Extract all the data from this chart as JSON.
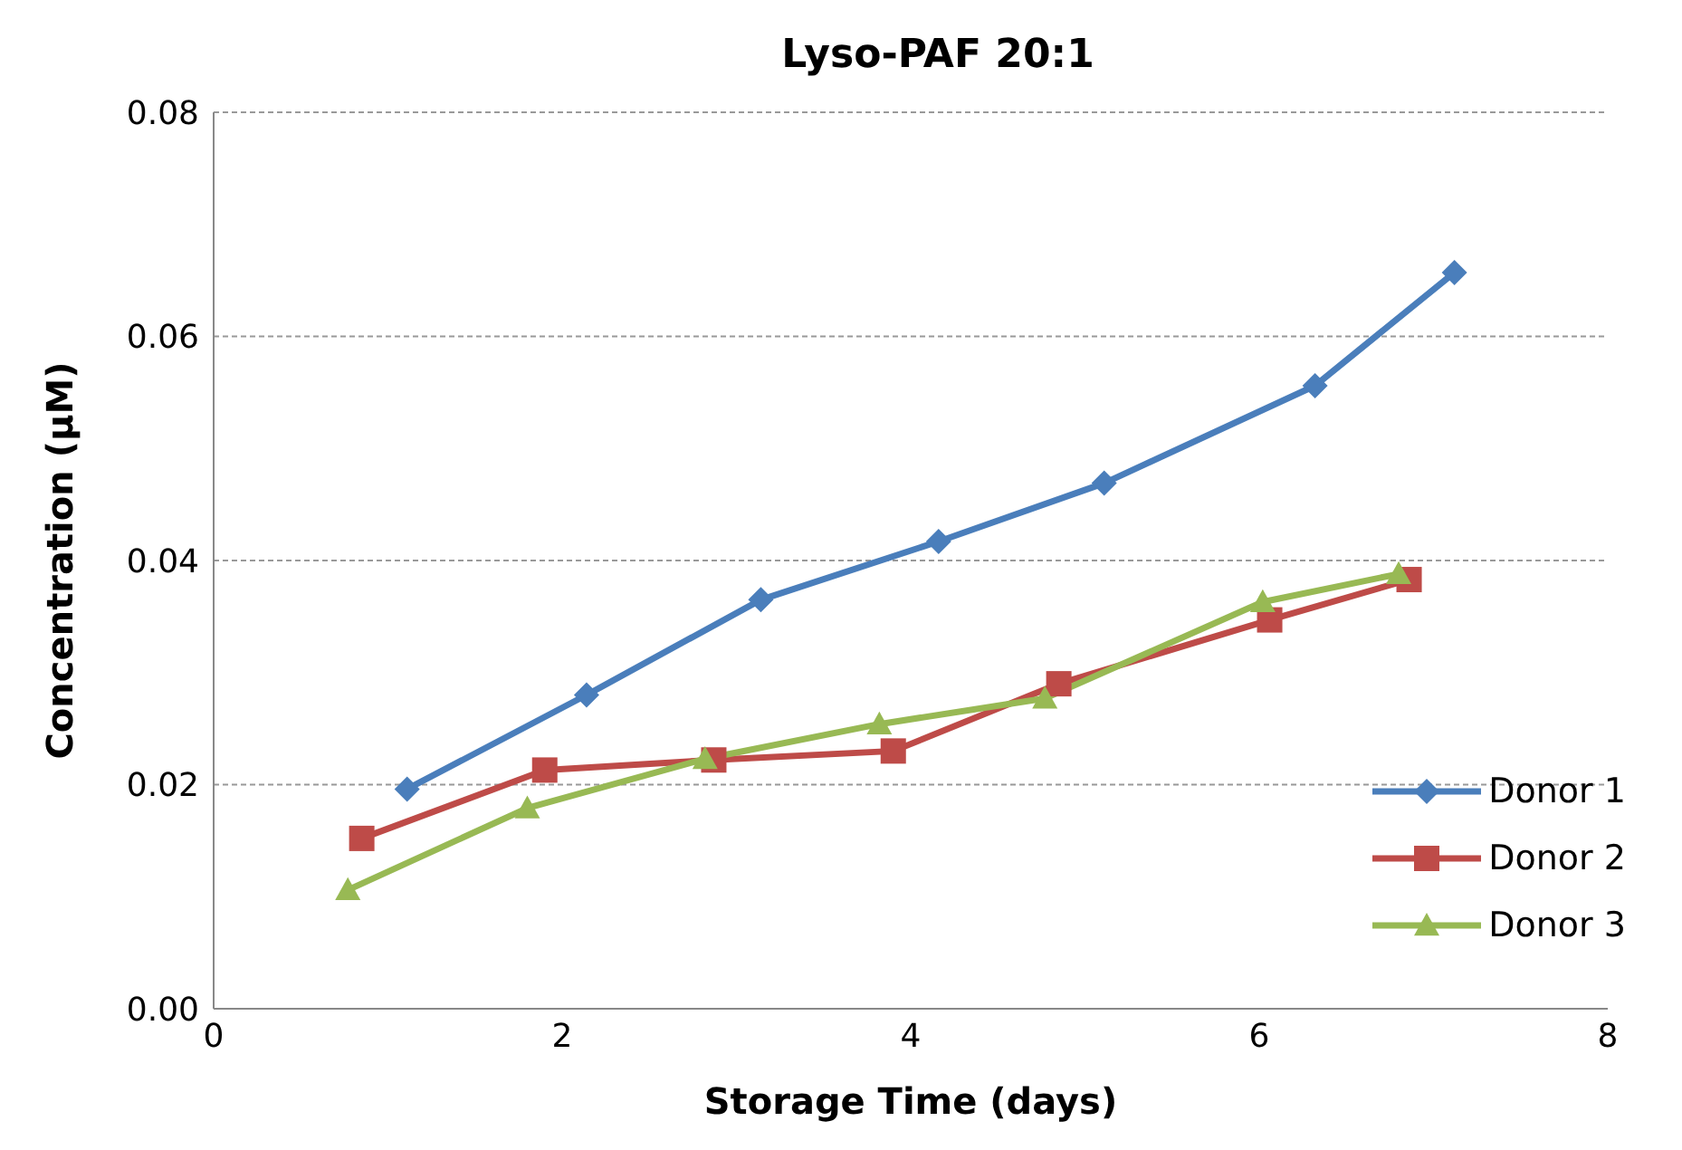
{
  "chart_data": {
    "type": "line",
    "title": "Lyso-PAF 20:1",
    "xlabel": "Storage Time (days)",
    "ylabel": "Concentration (μM)",
    "xlim": [
      0,
      8
    ],
    "xticks": [
      0,
      2,
      4,
      6,
      8
    ],
    "ylim": [
      0,
      0.08
    ],
    "yticks": [
      {
        "value": 0,
        "label": "0.00"
      },
      {
        "value": 0.02,
        "label": "0.02"
      },
      {
        "value": 0.04,
        "label": "0.04"
      },
      {
        "value": 0.06,
        "label": "0.06"
      },
      {
        "value": 0.08,
        "label": "0.08"
      }
    ],
    "grid": "y",
    "legend": "right",
    "line_style": "solid",
    "series": [
      {
        "name": "Donor 1",
        "color": "#4a7ebb",
        "marker": "diamond",
        "x": [
          1.11,
          2.14,
          3.14,
          4.16,
          5.11,
          6.32,
          7.12
        ],
        "values": [
          0.0196,
          0.028,
          0.0365,
          0.0417,
          0.0469,
          0.0556,
          0.0657
        ]
      },
      {
        "name": "Donor 2",
        "color": "#be4b48",
        "marker": "square",
        "x": [
          0.85,
          1.9,
          2.87,
          3.9,
          4.85,
          6.06,
          6.86
        ],
        "values": [
          0.0152,
          0.0213,
          0.0222,
          0.023,
          0.029,
          0.0347,
          0.0383
        ]
      },
      {
        "name": "Donor 3",
        "color": "#98b954",
        "marker": "triangle",
        "x": [
          0.77,
          1.8,
          2.82,
          3.82,
          4.77,
          6.02,
          6.8
        ],
        "values": [
          0.0106,
          0.0179,
          0.0223,
          0.0254,
          0.0277,
          0.0363,
          0.0388
        ]
      }
    ]
  }
}
